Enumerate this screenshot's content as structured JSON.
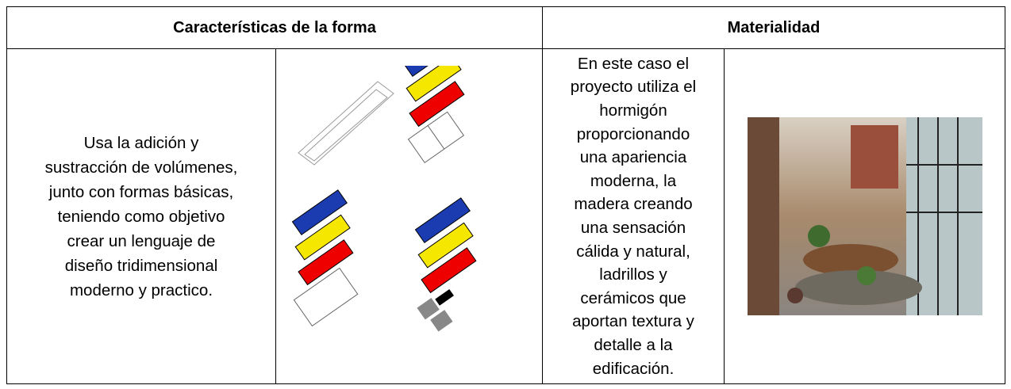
{
  "table": {
    "header": [
      "Características de la forma",
      "Materialidad"
    ],
    "rows": [
      [
        [
          "Usa la adición y",
          "sustracción de volúmenes,",
          "junto con formas básicas,",
          "teniendo como objetivo",
          "crear un lenguaje de",
          "diseño tridimensional",
          "moderno y practico."
        ],
        [
          "En este caso el",
          "proyecto utiliza el",
          "hormigón",
          "proporcionando",
          "una apariencia",
          "moderna, la",
          "madera creando",
          "una sensación",
          "cálida y natural,",
          "ladrillos y",
          "cerámicos que",
          "aportan textura y",
          "detalle a la",
          "edificación."
        ]
      ]
    ]
  }
}
